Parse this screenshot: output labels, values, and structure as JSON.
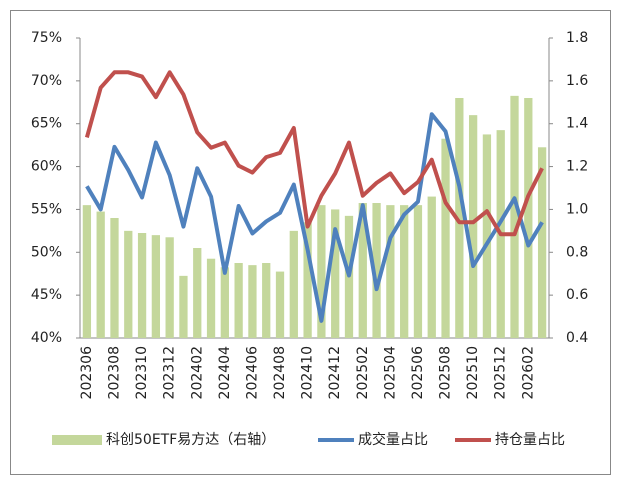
{
  "chart_data": {
    "type": "combo",
    "categories": [
      "202306",
      null,
      "202308",
      null,
      "202310",
      null,
      "202312",
      null,
      "202402",
      null,
      "202404",
      null,
      "202406",
      null,
      "202408",
      null,
      "202410",
      null,
      "202412",
      null,
      "202502",
      null,
      "202504",
      null,
      "202506",
      null,
      "202508",
      null,
      "202510",
      null,
      "202512",
      null,
      "202602",
      null
    ],
    "series": [
      {
        "name": "科创50ETF易方达（右轴）",
        "type": "bar",
        "axis": "y2",
        "color": "#c4d79b",
        "values": [
          1.02,
          0.99,
          0.96,
          0.9,
          0.89,
          0.88,
          0.87,
          0.69,
          0.82,
          0.77,
          0.73,
          0.75,
          0.74,
          0.75,
          0.71,
          0.9,
          0.94,
          1.02,
          1.0,
          0.97,
          1.03,
          1.03,
          1.02,
          1.02,
          1.02,
          1.06,
          1.33,
          1.52,
          1.44,
          1.35,
          1.37,
          1.53,
          1.52,
          1.29
        ]
      },
      {
        "name": "成交量占比",
        "type": "line",
        "color": "#4f81bd",
        "values": [
          57.7,
          55.0,
          62.3,
          59.6,
          56.4,
          62.8,
          59.0,
          53.0,
          59.8,
          56.5,
          47.6,
          55.4,
          52.2,
          53.6,
          54.6,
          57.9,
          50.3,
          42.0,
          52.7,
          47.3,
          55.5,
          45.7,
          51.7,
          54.4,
          55.9,
          66.1,
          64.1,
          57.7,
          48.4,
          51.0,
          53.6,
          56.3,
          50.8,
          53.5
        ]
      },
      {
        "name": "持仓量占比",
        "type": "line",
        "color": "#c0504d",
        "values": [
          63.4,
          69.2,
          71.0,
          71.0,
          70.5,
          68.1,
          71.0,
          68.4,
          64.0,
          62.2,
          62.8,
          60.1,
          59.3,
          61.1,
          61.6,
          64.5,
          53.0,
          56.6,
          59.2,
          62.8,
          56.6,
          58.1,
          59.2,
          56.9,
          58.2,
          60.8,
          55.8,
          53.5,
          53.5,
          54.8,
          52.1,
          52.1,
          56.6,
          59.8
        ]
      }
    ],
    "ylim": [
      40,
      75
    ],
    "yticks": [
      {
        "value": 40,
        "label": "40%"
      },
      {
        "value": 45,
        "label": "45%"
      },
      {
        "value": 50,
        "label": "50%"
      },
      {
        "value": 55,
        "label": "55%"
      },
      {
        "value": 60,
        "label": "60%"
      },
      {
        "value": 65,
        "label": "65%"
      },
      {
        "value": 70,
        "label": "70%"
      },
      {
        "value": 75,
        "label": "75%"
      }
    ],
    "y2lim": [
      0.4,
      1.8
    ],
    "y2ticks": [
      0.4,
      0.6,
      0.8,
      {
        "value": 1,
        "label": "1.0"
      },
      1.2,
      1.4,
      1.6,
      1.8
    ],
    "legend": "bottom",
    "grid": false
  }
}
